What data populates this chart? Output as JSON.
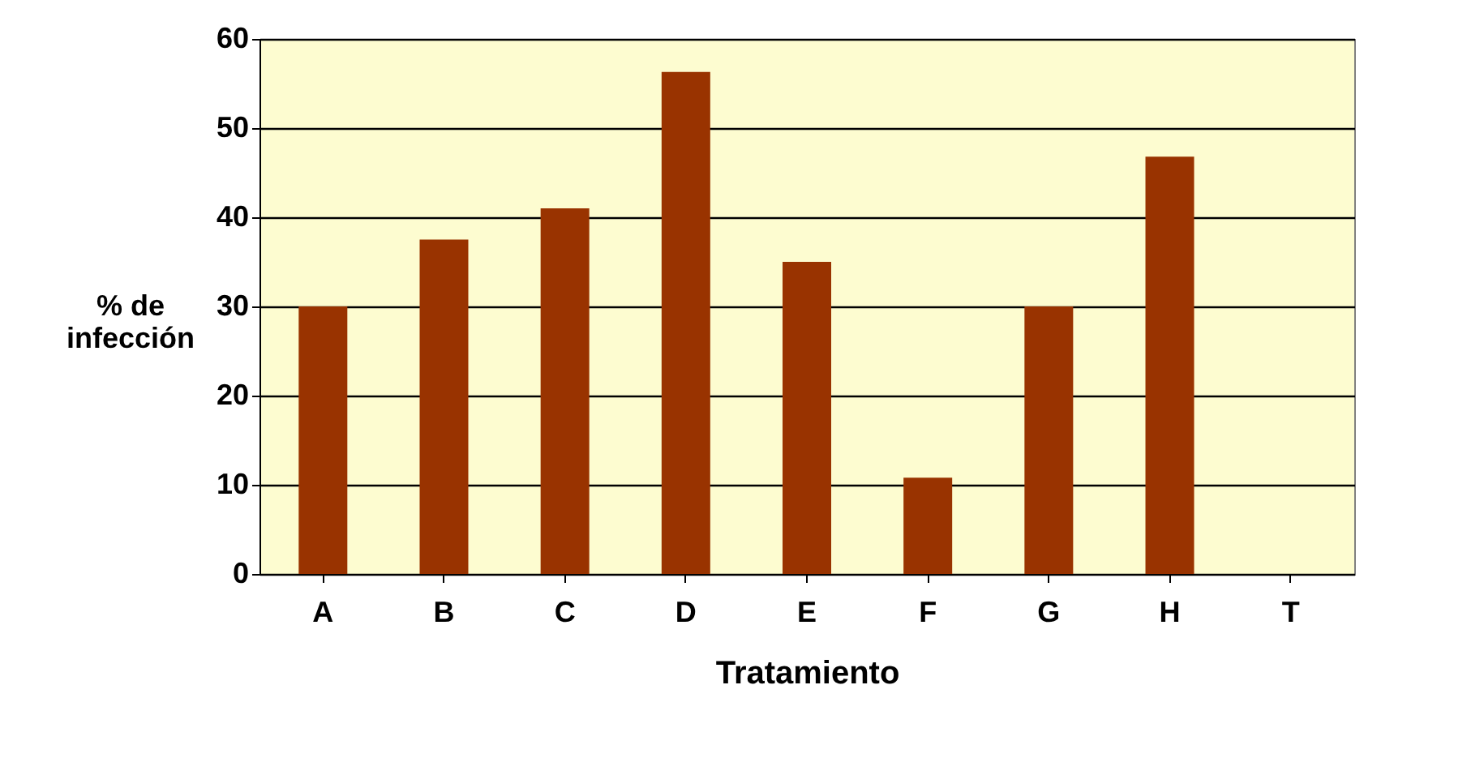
{
  "chart_data": {
    "type": "bar",
    "xlabel": "Tratamiento",
    "ylabel": "% de infección",
    "categories": [
      "A",
      "B",
      "C",
      "D",
      "E",
      "F",
      "G",
      "H",
      "T"
    ],
    "values": [
      30,
      37.5,
      41,
      56.3,
      35,
      10.8,
      30,
      46.8,
      0
    ],
    "color": "#993300",
    "ylim": [
      0,
      60
    ],
    "yticks": [
      0,
      10,
      20,
      30,
      40,
      50,
      60
    ],
    "grid": "y"
  }
}
